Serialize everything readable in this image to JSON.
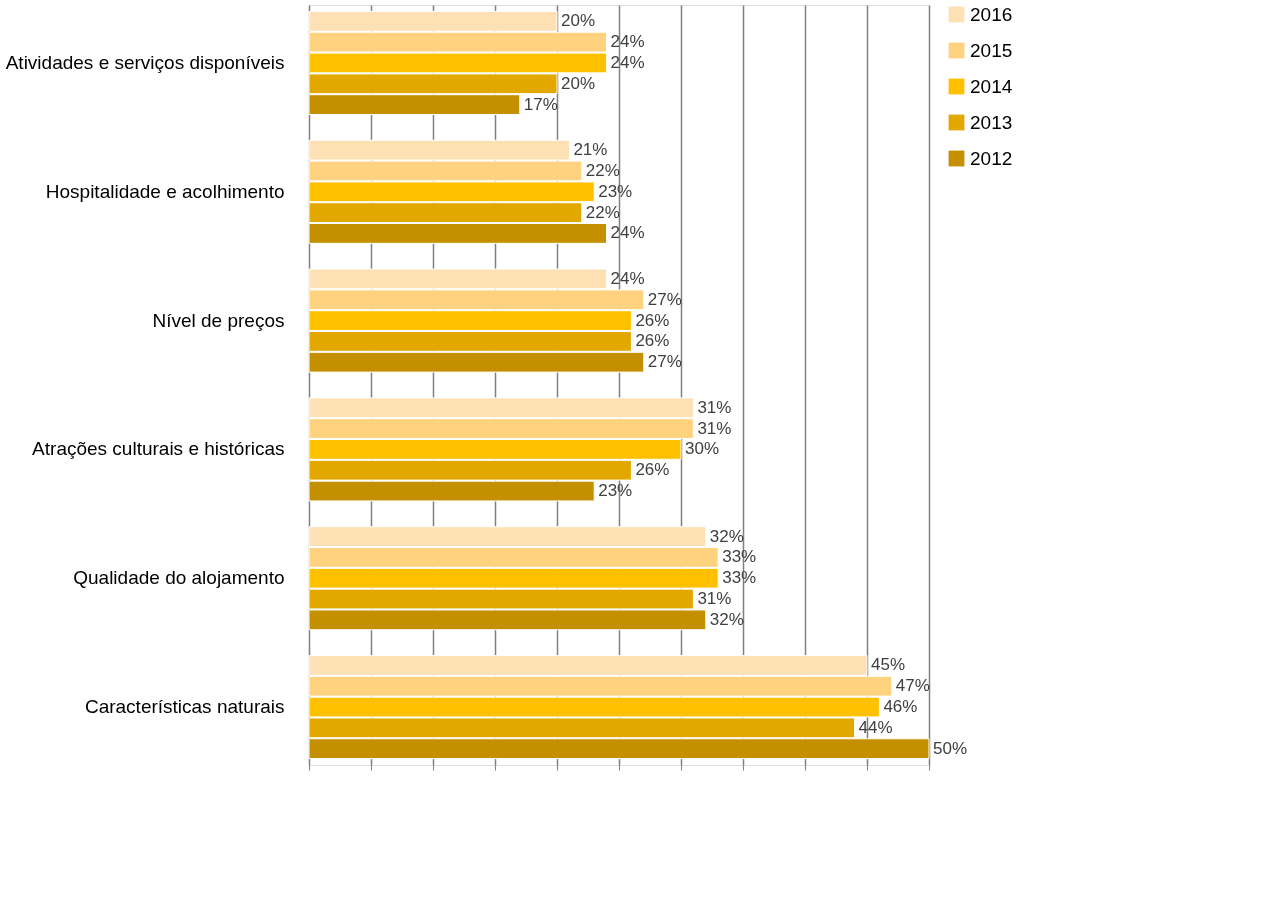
{
  "chart_data": {
    "type": "bar",
    "orientation": "horizontal",
    "categories": [
      "Atividades e serviços disponíveis",
      "Hospitalidade e acolhimento",
      "Nível de preços",
      "Atrações culturais e históricas",
      "Qualidade do alojamento",
      "Características naturais"
    ],
    "series": [
      {
        "name": "2016",
        "color": "#fde0b3",
        "values": [
          20,
          21,
          24,
          31,
          32,
          45
        ],
        "value_labels": [
          "20%",
          "21%",
          "24%",
          "31%",
          "32%",
          "45%"
        ]
      },
      {
        "name": "2015",
        "color": "#ffd27f",
        "values": [
          24,
          22,
          27,
          31,
          33,
          47
        ],
        "value_labels": [
          "24%",
          "22%",
          "27%",
          "31%",
          "33%",
          "47%"
        ]
      },
      {
        "name": "2014",
        "color": "#ffc000",
        "values": [
          24,
          23,
          26,
          30,
          33,
          46
        ],
        "value_labels": [
          "24%",
          "23%",
          "26%",
          "30%",
          "33%",
          "46%"
        ]
      },
      {
        "name": "2013",
        "color": "#e3a800",
        "values": [
          20,
          22,
          26,
          26,
          31,
          44
        ],
        "value_labels": [
          "20%",
          "22%",
          "26%",
          "26%",
          "31%",
          "44%"
        ]
      },
      {
        "name": "2012",
        "color": "#c49000",
        "values": [
          17,
          24,
          27,
          23,
          32,
          50
        ],
        "value_labels": [
          "17%",
          "24%",
          "27%",
          "23%",
          "32%",
          "50%"
        ]
      }
    ],
    "xlim": [
      0,
      50
    ],
    "xticks": [
      {
        "value": 0,
        "label": null
      },
      {
        "value": 5,
        "label": null
      },
      {
        "value": 10,
        "label": null
      },
      {
        "value": 15,
        "label": null
      },
      {
        "value": 20,
        "label": null
      },
      {
        "value": 25,
        "label": null
      },
      {
        "value": 30,
        "label": null
      },
      {
        "value": 35,
        "label": null
      },
      {
        "value": 40,
        "label": null
      },
      {
        "value": 45,
        "label": null
      },
      {
        "value": 50,
        "label": null
      }
    ],
    "tick_labels": "y",
    "grid": "x",
    "legend": "right"
  }
}
